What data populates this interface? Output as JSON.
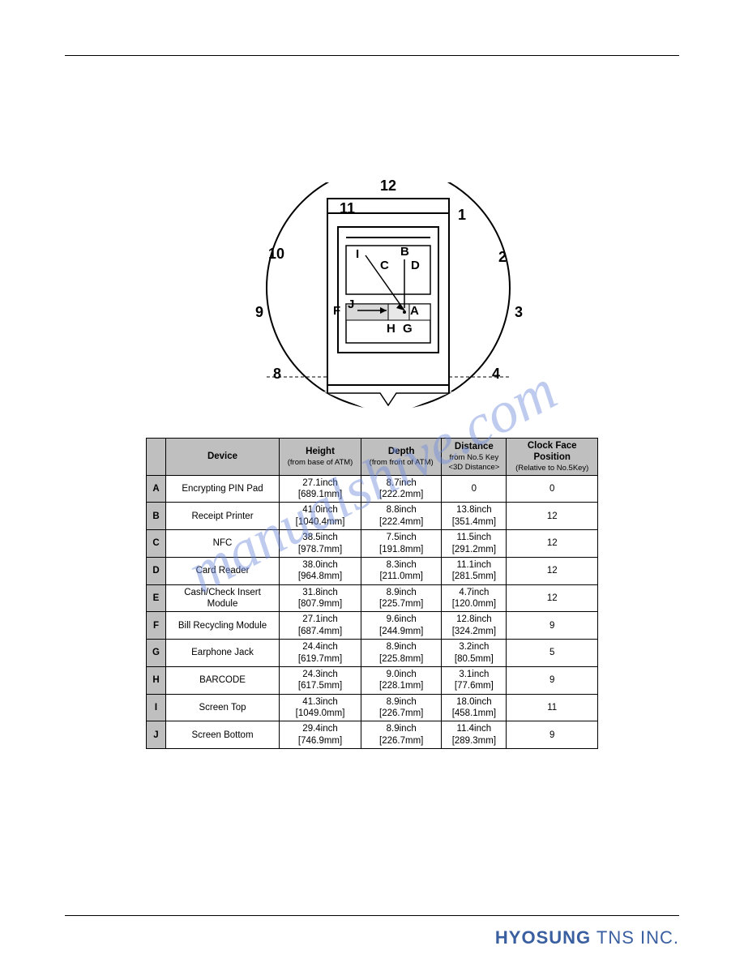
{
  "watermark": "manualshive.com",
  "footer": {
    "brand1": "HYOSUNG",
    "brand2": " TNS INC."
  },
  "diagram": {
    "clock_labels": [
      "12",
      "1",
      "2",
      "3",
      "4",
      "8",
      "9",
      "10",
      "11"
    ],
    "device_labels": [
      "A",
      "B",
      "C",
      "D",
      "F",
      "G",
      "H",
      "I",
      "J"
    ]
  },
  "table": {
    "headers": {
      "device": "Device",
      "height": "Height",
      "height_sub": "(from base of ATM)",
      "depth": "Depth",
      "depth_sub": "(from front of ATM)",
      "distance": "Distance",
      "distance_sub1": "from No.5 Key",
      "distance_sub2": "<3D Distance>",
      "clock": "Clock Face",
      "clock2": "Position",
      "clock_sub": "(Relative to No.5Key)"
    },
    "rows": [
      {
        "key": "A",
        "device": "Encrypting PIN Pad",
        "h1": "27.1inch",
        "h2": "[689.1mm]",
        "d1": "8.7inch",
        "d2": "[222.2mm]",
        "dist1": "0",
        "dist2": "",
        "clock": "0"
      },
      {
        "key": "B",
        "device": "Receipt Printer",
        "h1": "41.0inch",
        "h2": "[1040.4mm]",
        "d1": "8.8inch",
        "d2": "[222.4mm]",
        "dist1": "13.8inch",
        "dist2": "[351.4mm]",
        "clock": "12"
      },
      {
        "key": "C",
        "device": "NFC",
        "h1": "38.5inch",
        "h2": "[978.7mm]",
        "d1": "7.5inch",
        "d2": "[191.8mm]",
        "dist1": "11.5inch",
        "dist2": "[291.2mm]",
        "clock": "12"
      },
      {
        "key": "D",
        "device": "Card Reader",
        "h1": "38.0inch",
        "h2": "[964.8mm]",
        "d1": "8.3inch",
        "d2": "[211.0mm]",
        "dist1": "11.1inch",
        "dist2": "[281.5mm]",
        "clock": "12"
      },
      {
        "key": "E",
        "device": "Cash/Check Insert Module",
        "h1": "31.8inch",
        "h2": "[807.9mm]",
        "d1": "8.9inch",
        "d2": "[225.7mm]",
        "dist1": "4.7inch",
        "dist2": "[120.0mm]",
        "clock": "12"
      },
      {
        "key": "F",
        "device": "Bill Recycling Module",
        "h1": "27.1inch",
        "h2": "[687.4mm]",
        "d1": "9.6inch",
        "d2": "[244.9mm]",
        "dist1": "12.8inch",
        "dist2": "[324.2mm]",
        "clock": "9"
      },
      {
        "key": "G",
        "device": "Earphone Jack",
        "h1": "24.4inch",
        "h2": "[619.7mm]",
        "d1": "8.9inch",
        "d2": "[225.8mm]",
        "dist1": "3.2inch",
        "dist2": "[80.5mm]",
        "clock": "5"
      },
      {
        "key": "H",
        "device": "BARCODE",
        "h1": "24.3inch",
        "h2": "[617.5mm]",
        "d1": "9.0inch",
        "d2": "[228.1mm]",
        "dist1": "3.1inch",
        "dist2": "[77.6mm]",
        "clock": "9"
      },
      {
        "key": "I",
        "device": "Screen Top",
        "h1": "41.3inch",
        "h2": "[1049.0mm]",
        "d1": "8.9inch",
        "d2": "[226.7mm]",
        "dist1": "18.0inch",
        "dist2": "[458.1mm]",
        "clock": "11"
      },
      {
        "key": "J",
        "device": "Screen Bottom",
        "h1": "29.4inch",
        "h2": "[746.9mm]",
        "d1": "8.9inch",
        "d2": "[226.7mm]",
        "dist1": "11.4inch",
        "dist2": "[289.3mm]",
        "clock": "9"
      }
    ]
  },
  "colors": {
    "header_bg": "#bfbfbf",
    "border": "#000000",
    "watermark": "rgba(110,140,220,0.45)",
    "brand": "#3a5fa0"
  }
}
